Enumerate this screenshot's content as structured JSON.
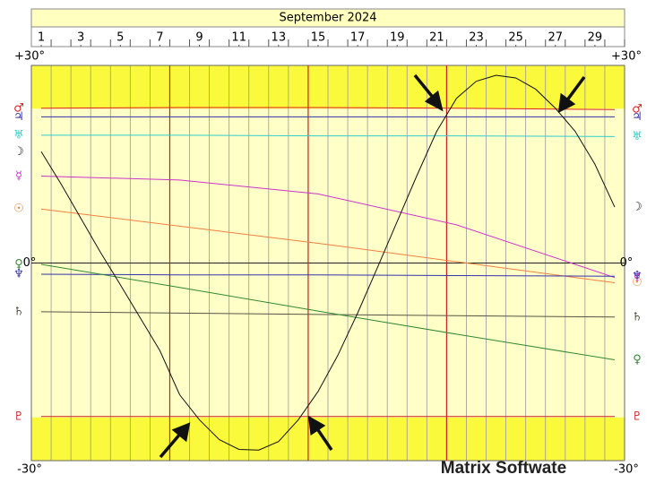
{
  "chart_data": {
    "type": "line",
    "title": "September 2024",
    "watermark": "Matrix Softwate",
    "xlim": [
      0.5,
      30.5
    ],
    "xticks": [
      1,
      3,
      5,
      7,
      9,
      11,
      13,
      15,
      17,
      19,
      21,
      23,
      25,
      27,
      29
    ],
    "ylim": [
      -30,
      30
    ],
    "yticks": [
      {
        "value": 30,
        "label": "+30°"
      },
      {
        "value": 0,
        "label": "0°"
      },
      {
        "value": -30,
        "label": "-30°"
      }
    ],
    "shaded_above": 23.44,
    "shaded_below": -23.44,
    "event_lines": [
      7.5,
      14.5,
      21.5
    ],
    "event_color": "#cc2222",
    "grid": true,
    "series": [
      {
        "name": "♂",
        "color": "#dd2222",
        "x": [
          1,
          8,
          15,
          22,
          30
        ],
        "values": [
          23.5,
          23.6,
          23.6,
          23.5,
          23.3
        ]
      },
      {
        "name": "♃",
        "color": "#3333aa",
        "x": [
          1,
          8,
          15,
          22,
          30
        ],
        "values": [
          22.2,
          22.2,
          22.2,
          22.2,
          22.2
        ]
      },
      {
        "name": "♅",
        "color": "#33cccc",
        "x": [
          1,
          8,
          15,
          22,
          30
        ],
        "values": [
          19.4,
          19.4,
          19.3,
          19.3,
          19.2
        ]
      },
      {
        "name": "☿",
        "color": "#cc33cc",
        "x": [
          1,
          8,
          15,
          22,
          30
        ],
        "values": [
          13.2,
          12.6,
          10.5,
          5.8,
          -2.2
        ]
      },
      {
        "name": "☉",
        "color": "#f08040",
        "x": [
          1,
          8,
          15,
          22,
          30
        ],
        "values": [
          8.2,
          5.6,
          3.0,
          0.2,
          -3.0
        ]
      },
      {
        "name": "♆",
        "color": "#3333aa",
        "x": [
          1,
          8,
          15,
          22,
          30
        ],
        "values": [
          -1.7,
          -1.8,
          -1.8,
          -1.9,
          -2.0
        ]
      },
      {
        "name": "♄",
        "color": "#555544",
        "x": [
          1,
          8,
          15,
          22,
          30
        ],
        "values": [
          -7.4,
          -7.6,
          -7.8,
          -8.0,
          -8.2
        ]
      },
      {
        "name": "♀",
        "color": "#338833",
        "x": [
          1,
          8,
          15,
          22,
          30
        ],
        "values": [
          -0.2,
          -3.7,
          -7.3,
          -10.8,
          -14.7
        ]
      },
      {
        "name": "♇",
        "color": "#cc2222",
        "x": [
          1,
          8,
          15,
          22,
          30
        ],
        "values": [
          -23.3,
          -23.3,
          -23.3,
          -23.3,
          -23.3
        ]
      },
      {
        "name": "☽",
        "color": "#111111",
        "x": [
          1,
          2,
          3,
          4,
          5,
          6,
          7,
          8,
          9,
          10,
          11,
          12,
          13,
          14,
          15,
          16,
          17,
          18,
          19,
          20,
          21,
          22,
          23,
          24,
          25,
          26,
          27,
          28,
          29,
          30
        ],
        "values": [
          16.9,
          12.0,
          6.8,
          1.6,
          -3.3,
          -8.3,
          -13.3,
          -20.0,
          -23.8,
          -26.8,
          -28.3,
          -28.4,
          -27.1,
          -23.8,
          -19.5,
          -14.0,
          -7.6,
          -0.7,
          6.3,
          13.3,
          20.0,
          25.0,
          27.6,
          28.5,
          28.1,
          26.4,
          23.5,
          20.0,
          15.0,
          8.5
        ]
      }
    ]
  }
}
